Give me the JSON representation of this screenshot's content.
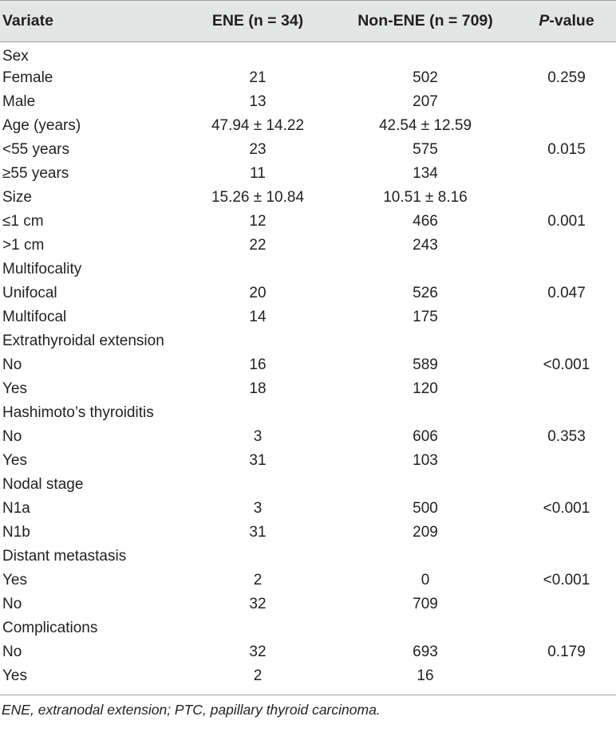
{
  "table": {
    "headers": {
      "variate": "Variate",
      "ene": "ENE (n = 34)",
      "non_ene": "Non-ENE (n = 709)",
      "p_italic": "P",
      "p_rest": "-value"
    },
    "rows": [
      {
        "variate": "Sex",
        "ene": "",
        "non_ene": "",
        "p": ""
      },
      {
        "variate": "Female",
        "ene": "21",
        "non_ene": "502",
        "p": "0.259"
      },
      {
        "variate": "Male",
        "ene": "13",
        "non_ene": "207",
        "p": ""
      },
      {
        "variate": "Age (years)",
        "ene": "47.94 ± 14.22",
        "non_ene": "42.54 ± 12.59",
        "p": ""
      },
      {
        "variate": "<55 years",
        "ene": "23",
        "non_ene": "575",
        "p": "0.015"
      },
      {
        "variate": "≥55 years",
        "ene": "11",
        "non_ene": "134",
        "p": ""
      },
      {
        "variate": "Size",
        "ene": "15.26 ± 10.84",
        "non_ene": "10.51 ± 8.16",
        "p": ""
      },
      {
        "variate": "≤1 cm",
        "ene": "12",
        "non_ene": "466",
        "p": "0.001"
      },
      {
        "variate": ">1 cm",
        "ene": "22",
        "non_ene": "243",
        "p": ""
      },
      {
        "variate": "Multifocality",
        "ene": "",
        "non_ene": "",
        "p": ""
      },
      {
        "variate": "Unifocal",
        "ene": "20",
        "non_ene": "526",
        "p": "0.047"
      },
      {
        "variate": "Multifocal",
        "ene": "14",
        "non_ene": "175",
        "p": ""
      },
      {
        "variate": "Extrathyroidal extension",
        "ene": "",
        "non_ene": "",
        "p": ""
      },
      {
        "variate": "No",
        "ene": "16",
        "non_ene": "589",
        "p": "<0.001"
      },
      {
        "variate": "Yes",
        "ene": "18",
        "non_ene": "120",
        "p": ""
      },
      {
        "variate": "Hashimoto’s thyroiditis",
        "ene": "",
        "non_ene": "",
        "p": ""
      },
      {
        "variate": "No",
        "ene": "3",
        "non_ene": "606",
        "p": "0.353"
      },
      {
        "variate": "Yes",
        "ene": "31",
        "non_ene": "103",
        "p": ""
      },
      {
        "variate": "Nodal stage",
        "ene": "",
        "non_ene": "",
        "p": ""
      },
      {
        "variate": "N1a",
        "ene": "3",
        "non_ene": "500",
        "p": "<0.001"
      },
      {
        "variate": "N1b",
        "ene": "31",
        "non_ene": "209",
        "p": ""
      },
      {
        "variate": "Distant metastasis",
        "ene": "",
        "non_ene": "",
        "p": ""
      },
      {
        "variate": "Yes",
        "ene": "2",
        "non_ene": "0",
        "p": "<0.001"
      },
      {
        "variate": "No",
        "ene": "32",
        "non_ene": "709",
        "p": ""
      },
      {
        "variate": "Complications",
        "ene": "",
        "non_ene": "",
        "p": ""
      },
      {
        "variate": "No",
        "ene": "32",
        "non_ene": "693",
        "p": "0.179"
      },
      {
        "variate": "Yes",
        "ene": "2",
        "non_ene": "16",
        "p": ""
      }
    ]
  },
  "footnote": "ENE, extranodal extension; PTC, papillary thyroid carcinoma.",
  "colors": {
    "header_bg": "#e4e6e6",
    "rule": "#9d9fa2",
    "text": "#231f20"
  }
}
